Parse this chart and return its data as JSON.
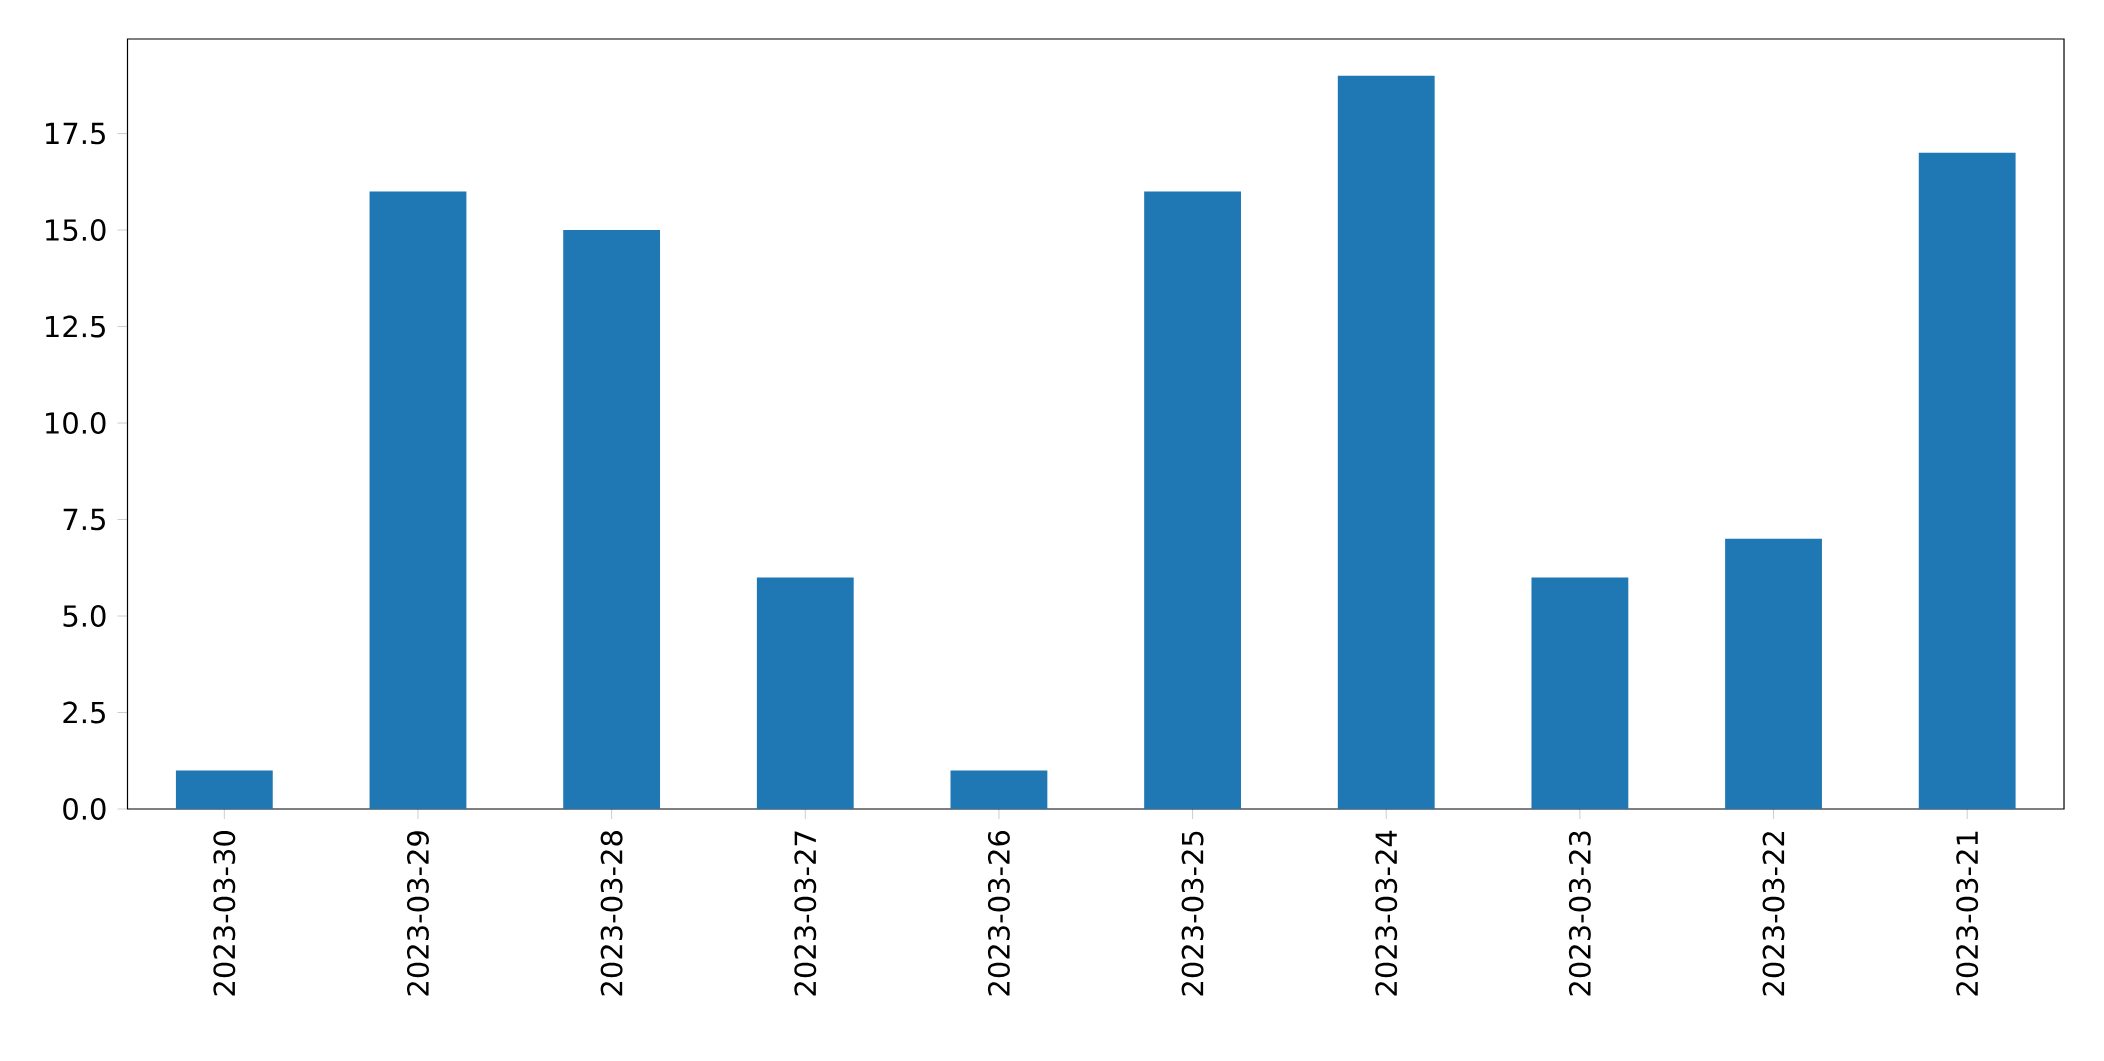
{
  "chart_data": {
    "type": "bar",
    "categories": [
      "2023-03-30",
      "2023-03-29",
      "2023-03-28",
      "2023-03-27",
      "2023-03-26",
      "2023-03-25",
      "2023-03-24",
      "2023-03-23",
      "2023-03-22",
      "2023-03-21"
    ],
    "values": [
      1,
      16,
      15,
      6,
      1,
      16,
      19,
      6,
      7,
      17
    ],
    "color": "#1f77b4",
    "ylim": [
      0,
      19.95
    ],
    "yticks": [
      {
        "value": 0,
        "label": "0.0"
      },
      {
        "value": 2.5,
        "label": "2.5"
      },
      {
        "value": 5,
        "label": "5.0"
      },
      {
        "value": 7.5,
        "label": "7.5"
      },
      {
        "value": 10,
        "label": "10.0"
      },
      {
        "value": 12.5,
        "label": "12.5"
      },
      {
        "value": 15,
        "label": "15.0"
      },
      {
        "value": 17.5,
        "label": "17.5"
      }
    ]
  }
}
